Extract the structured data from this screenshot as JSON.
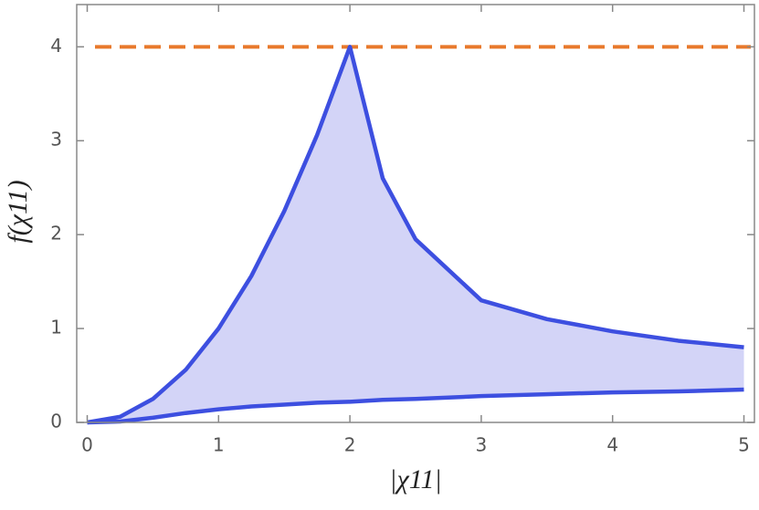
{
  "chart_data": {
    "type": "line",
    "xlabel": "|χ11|",
    "ylabel": "f(χ11)",
    "x": [
      0,
      0.25,
      0.5,
      0.75,
      1,
      1.25,
      1.5,
      1.75,
      2,
      2.25,
      2.5,
      3,
      3.5,
      4,
      4.5,
      5
    ],
    "series": [
      {
        "name": "upper",
        "color": "#3d4fe0",
        "values": [
          0,
          0.06,
          0.25,
          0.56,
          1,
          1.56,
          2.25,
          3.06,
          4,
          2.6,
          1.95,
          1.3,
          1.1,
          0.97,
          0.87,
          0.8
        ]
      },
      {
        "name": "lower",
        "color": "#3d4fe0",
        "values": [
          0,
          0.01,
          0.05,
          0.1,
          0.14,
          0.17,
          0.19,
          0.21,
          0.22,
          0.24,
          0.25,
          0.28,
          0.3,
          0.32,
          0.33,
          0.35
        ]
      }
    ],
    "fill_between": true,
    "fill_color": "#d3d4f7",
    "reference_line": {
      "value": 4,
      "color": "#e8792b"
    },
    "xlim": [
      -0.08,
      5.08
    ],
    "ylim": [
      0,
      4.45
    ],
    "xticks": [
      0,
      1,
      2,
      3,
      4,
      5
    ],
    "yticks": [
      0,
      1,
      2,
      3,
      4
    ]
  }
}
